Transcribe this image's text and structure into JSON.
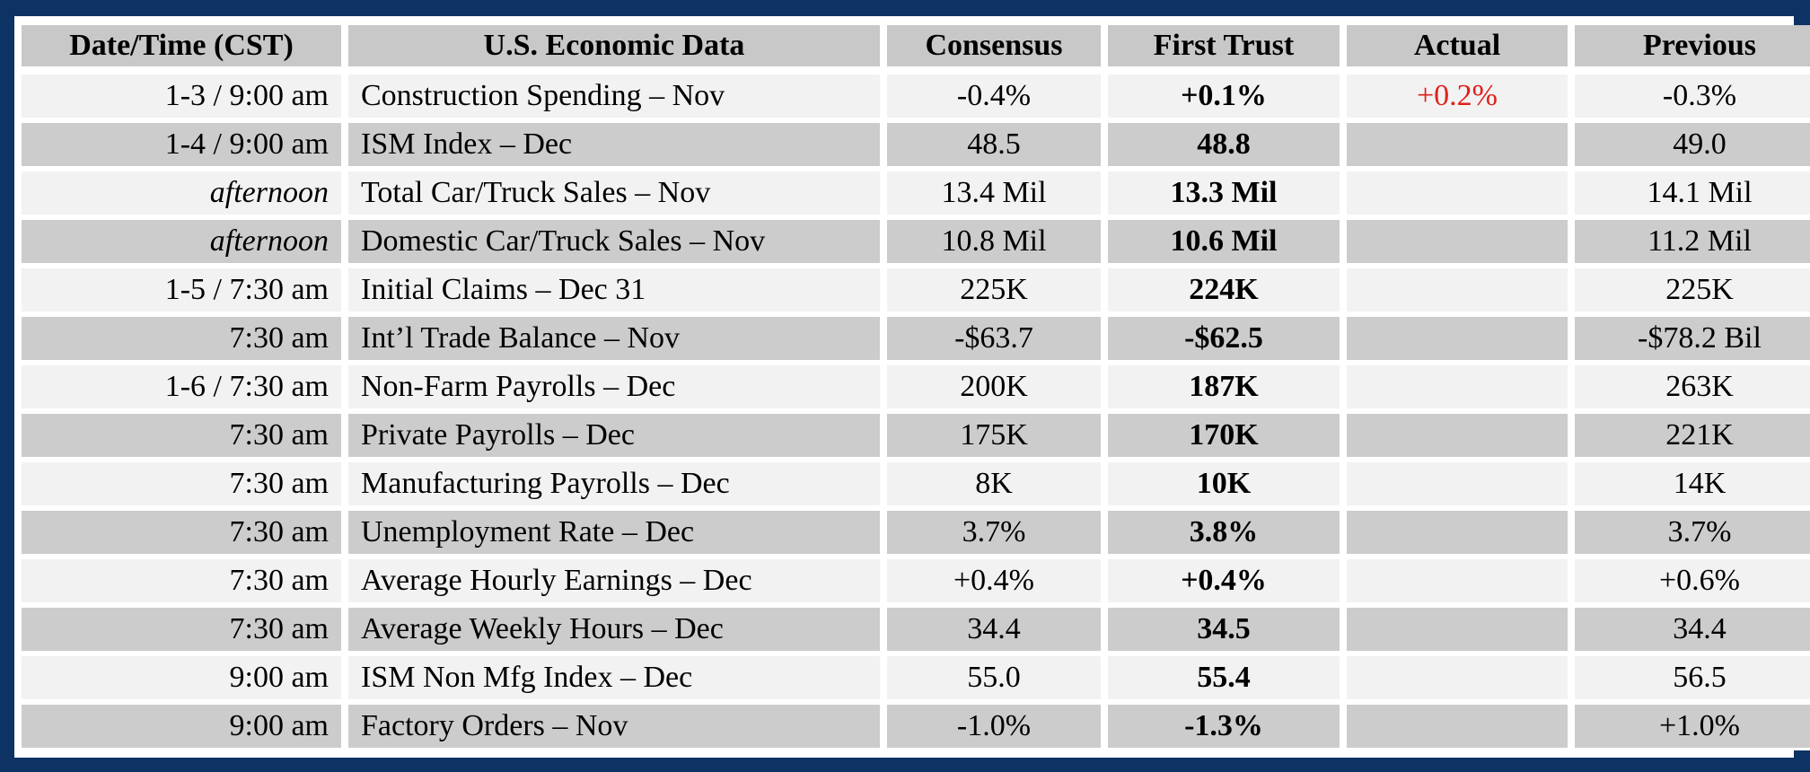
{
  "headers": {
    "datetime": "Date/Time (CST)",
    "indicator": "U.S. Economic Data",
    "consensus": "Consensus",
    "first_trust": "First Trust",
    "actual": "Actual",
    "previous": "Previous"
  },
  "colors": {
    "frame": "#0d3264",
    "header_bg": "#c8c8c8",
    "row_light": "#f2f2f2",
    "row_dark": "#cccccc",
    "actual_text": "#e0201a"
  },
  "rows": [
    {
      "time": "1-3 / 9:00 am",
      "indicator": "Construction Spending – Nov",
      "consensus": "-0.4%",
      "first_trust": "+0.1%",
      "actual": "+0.2%",
      "previous": "-0.3%"
    },
    {
      "time": "1-4 / 9:00 am",
      "indicator": "ISM Index – Dec",
      "consensus": "48.5",
      "first_trust": "48.8",
      "actual": "",
      "previous": "49.0"
    },
    {
      "time": "afternoon",
      "indicator": "Total Car/Truck Sales – Nov",
      "consensus": "13.4 Mil",
      "first_trust": "13.3 Mil",
      "actual": "",
      "previous": "14.1 Mil"
    },
    {
      "time": "afternoon",
      "indicator": "Domestic Car/Truck Sales – Nov",
      "consensus": "10.8 Mil",
      "first_trust": "10.6 Mil",
      "actual": "",
      "previous": "11.2 Mil"
    },
    {
      "time": "1-5 / 7:30 am",
      "indicator": "Initial Claims – Dec 31",
      "consensus": "225K",
      "first_trust": "224K",
      "actual": "",
      "previous": "225K"
    },
    {
      "time": "7:30 am",
      "indicator": "Int’l Trade Balance – Nov",
      "consensus": "-$63.7",
      "first_trust": "-$62.5",
      "actual": "",
      "previous": "-$78.2 Bil"
    },
    {
      "time": "1-6 / 7:30 am",
      "indicator": "Non-Farm Payrolls – Dec",
      "consensus": "200K",
      "first_trust": "187K",
      "actual": "",
      "previous": "263K"
    },
    {
      "time": "7:30 am",
      "indicator": "Private Payrolls – Dec",
      "consensus": "175K",
      "first_trust": "170K",
      "actual": "",
      "previous": "221K"
    },
    {
      "time": "7:30 am",
      "indicator": "Manufacturing Payrolls – Dec",
      "consensus": "8K",
      "first_trust": "10K",
      "actual": "",
      "previous": "14K"
    },
    {
      "time": "7:30 am",
      "indicator": "Unemployment Rate – Dec",
      "consensus": "3.7%",
      "first_trust": "3.8%",
      "actual": "",
      "previous": "3.7%"
    },
    {
      "time": "7:30 am",
      "indicator": "Average Hourly Earnings – Dec",
      "consensus": "+0.4%",
      "first_trust": "+0.4%",
      "actual": "",
      "previous": "+0.6%"
    },
    {
      "time": "7:30 am",
      "indicator": "Average Weekly Hours – Dec",
      "consensus": "34.4",
      "first_trust": "34.5",
      "actual": "",
      "previous": "34.4"
    },
    {
      "time": "9:00 am",
      "indicator": "ISM Non Mfg Index – Dec",
      "consensus": "55.0",
      "first_trust": "55.4",
      "actual": "",
      "previous": "56.5"
    },
    {
      "time": "9:00 am",
      "indicator": "Factory Orders – Nov",
      "consensus": "-1.0%",
      "first_trust": "-1.3%",
      "actual": "",
      "previous": "+1.0%"
    }
  ]
}
